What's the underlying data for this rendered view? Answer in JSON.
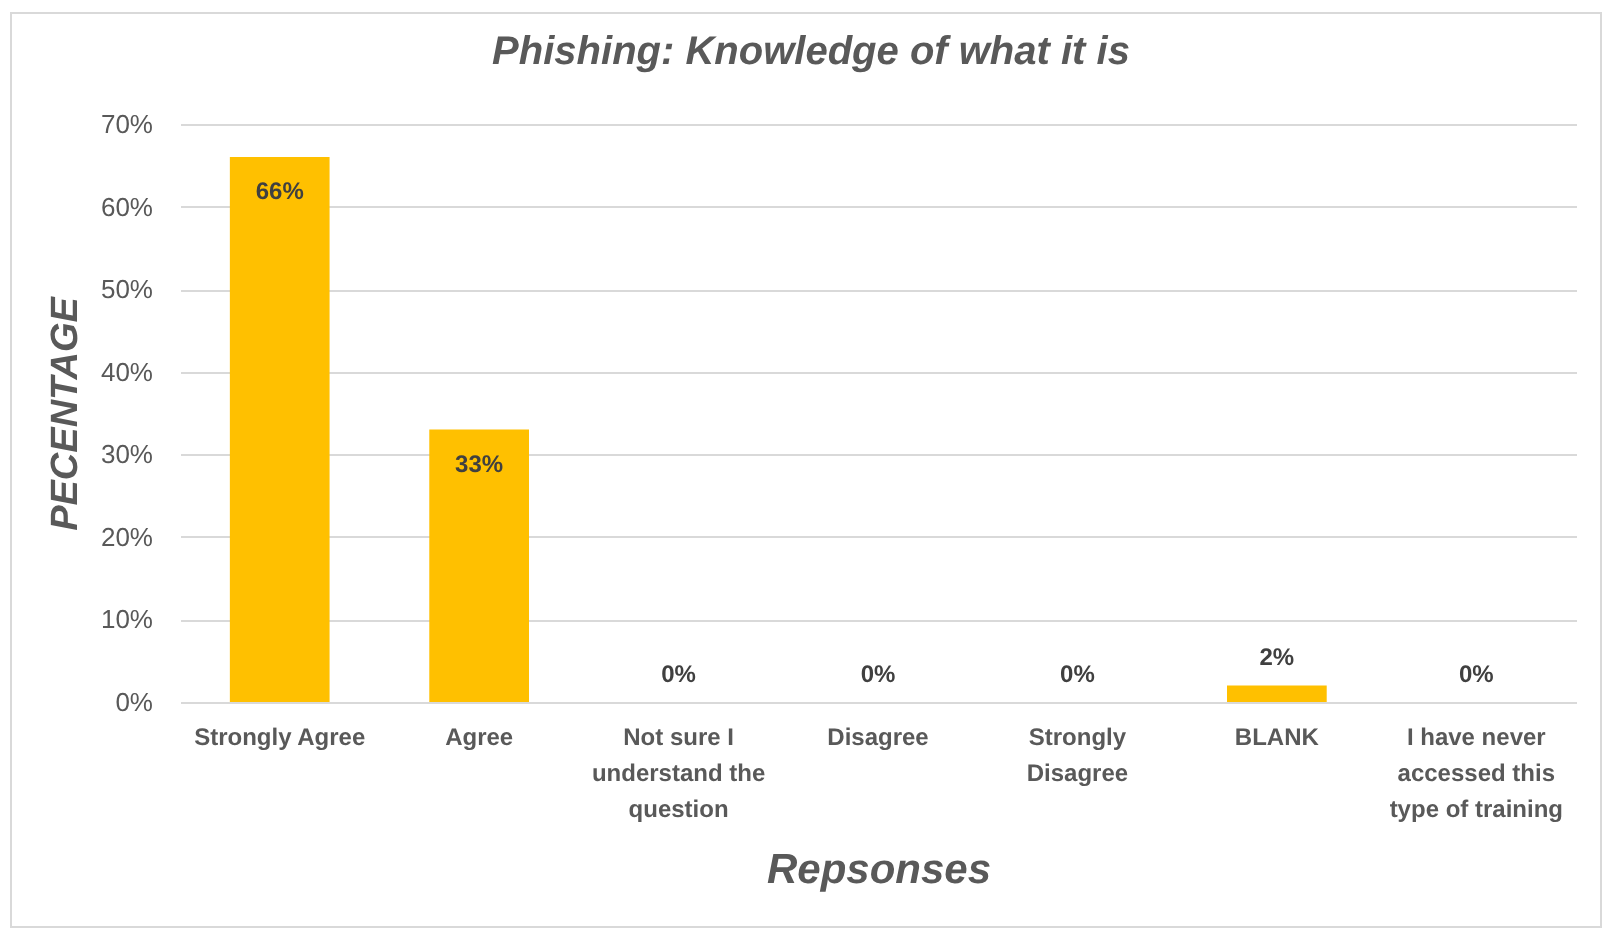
{
  "chart_data": {
    "type": "bar",
    "title": "Phishing: Knowledge of what it is",
    "xlabel": "Repsonses",
    "ylabel": "PECENTAGE",
    "categories": [
      "Strongly Agree",
      "Agree",
      "Not sure I understand the question",
      "Disagree",
      "Strongly Disagree",
      "BLANK",
      "I have never accessed this type of training"
    ],
    "values": [
      66,
      33,
      0,
      0,
      0,
      2,
      0
    ],
    "value_labels": [
      "66%",
      "33%",
      "0%",
      "0%",
      "0%",
      "2%",
      "0%"
    ],
    "color": "#ffc000",
    "ylim": [
      0,
      70
    ],
    "yticks": [
      {
        "value": 0,
        "label": "0%"
      },
      {
        "value": 10,
        "label": "10%"
      },
      {
        "value": 20,
        "label": "20%"
      },
      {
        "value": 30,
        "label": "30%"
      },
      {
        "value": 40,
        "label": "40%"
      },
      {
        "value": 50,
        "label": "50%"
      },
      {
        "value": 60,
        "label": "60%"
      },
      {
        "value": 70,
        "label": "70%"
      }
    ],
    "grid": "y"
  }
}
